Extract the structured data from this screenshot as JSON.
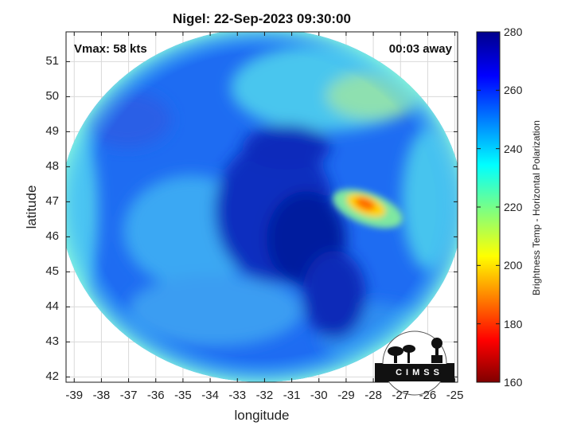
{
  "header": {
    "title": "Nigel: 22-Sep-2023 09:30:00"
  },
  "annotations": {
    "vmax": "Vmax: 58 kts",
    "time_away": "00:03 away"
  },
  "logo": {
    "text": "CIMSS"
  },
  "colors": {
    "frame": "#1a1a1a",
    "grid": "#d9d9d9",
    "text": "#222222"
  },
  "chart_data": {
    "type": "heatmap",
    "title": "Nigel: 22-Sep-2023 09:30:00",
    "xlabel": "longitude",
    "ylabel": "latitude",
    "xlim": [
      -39.3,
      -24.9
    ],
    "ylim": [
      41.85,
      51.85
    ],
    "xticks": [
      "-39",
      "-38",
      "-37",
      "-36",
      "-35",
      "-34",
      "-33",
      "-32",
      "-31",
      "-30",
      "-29",
      "-28",
      "-27",
      "-26",
      "-25"
    ],
    "yticks": [
      "42",
      "43",
      "44",
      "45",
      "46",
      "47",
      "48",
      "49",
      "50",
      "51"
    ],
    "grid": true,
    "colorbar": {
      "label": "Brightness Temp - Horizontal Polarization",
      "range": [
        160,
        280
      ],
      "ticks": [
        "280",
        "260",
        "240",
        "220",
        "200",
        "180",
        "160"
      ],
      "colormap": "jet"
    },
    "swath": {
      "center_lon": -32.1,
      "center_lat": 46.9,
      "radius_lon": 7.4,
      "radius_lat": 5.05
    },
    "features": [
      {
        "name": "central cold region",
        "lon": -31.5,
        "lat": 47.0,
        "value": 265
      },
      {
        "name": "warm spot",
        "lon": -28.6,
        "lat": 46.9,
        "value": 190
      },
      {
        "name": "outer warm band",
        "lon": -38.8,
        "lat": 46.3,
        "value": 228
      },
      {
        "name": "northern warm area",
        "lon": -31.5,
        "lat": 50.2,
        "value": 232
      }
    ]
  }
}
